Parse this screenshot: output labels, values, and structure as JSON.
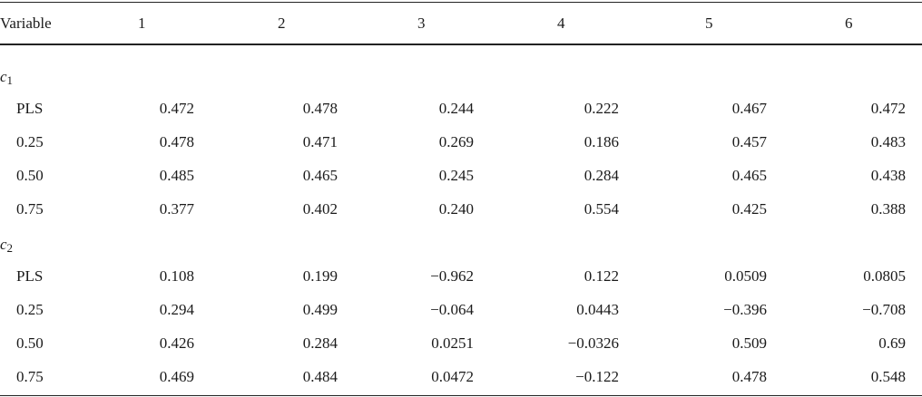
{
  "table": {
    "headers": [
      "Variable",
      "1",
      "2",
      "3",
      "4",
      "5",
      "6"
    ],
    "sections": [
      {
        "label_base": "c",
        "label_sub": "1",
        "rows": [
          [
            "PLS",
            "0.472",
            "0.478",
            "0.244",
            "0.222",
            "0.467",
            "0.472"
          ],
          [
            "0.25",
            "0.478",
            "0.471",
            "0.269",
            "0.186",
            "0.457",
            "0.483"
          ],
          [
            "0.50",
            "0.485",
            "0.465",
            "0.245",
            "0.284",
            "0.465",
            "0.438"
          ],
          [
            "0.75",
            "0.377",
            "0.402",
            "0.240",
            "0.554",
            "0.425",
            "0.388"
          ]
        ]
      },
      {
        "label_base": "c",
        "label_sub": "2",
        "rows": [
          [
            "PLS",
            "0.108",
            "0.199",
            "−0.962",
            "0.122",
            "0.0509",
            "0.0805"
          ],
          [
            "0.25",
            "0.294",
            "0.499",
            "−0.064",
            "0.0443",
            "−0.396",
            "−0.708"
          ],
          [
            "0.50",
            "0.426",
            "0.284",
            "0.0251",
            "−0.0326",
            "0.509",
            "0.69"
          ],
          [
            "0.75",
            "0.469",
            "0.484",
            "0.0472",
            "−0.122",
            "0.478",
            "0.548"
          ]
        ]
      }
    ]
  }
}
